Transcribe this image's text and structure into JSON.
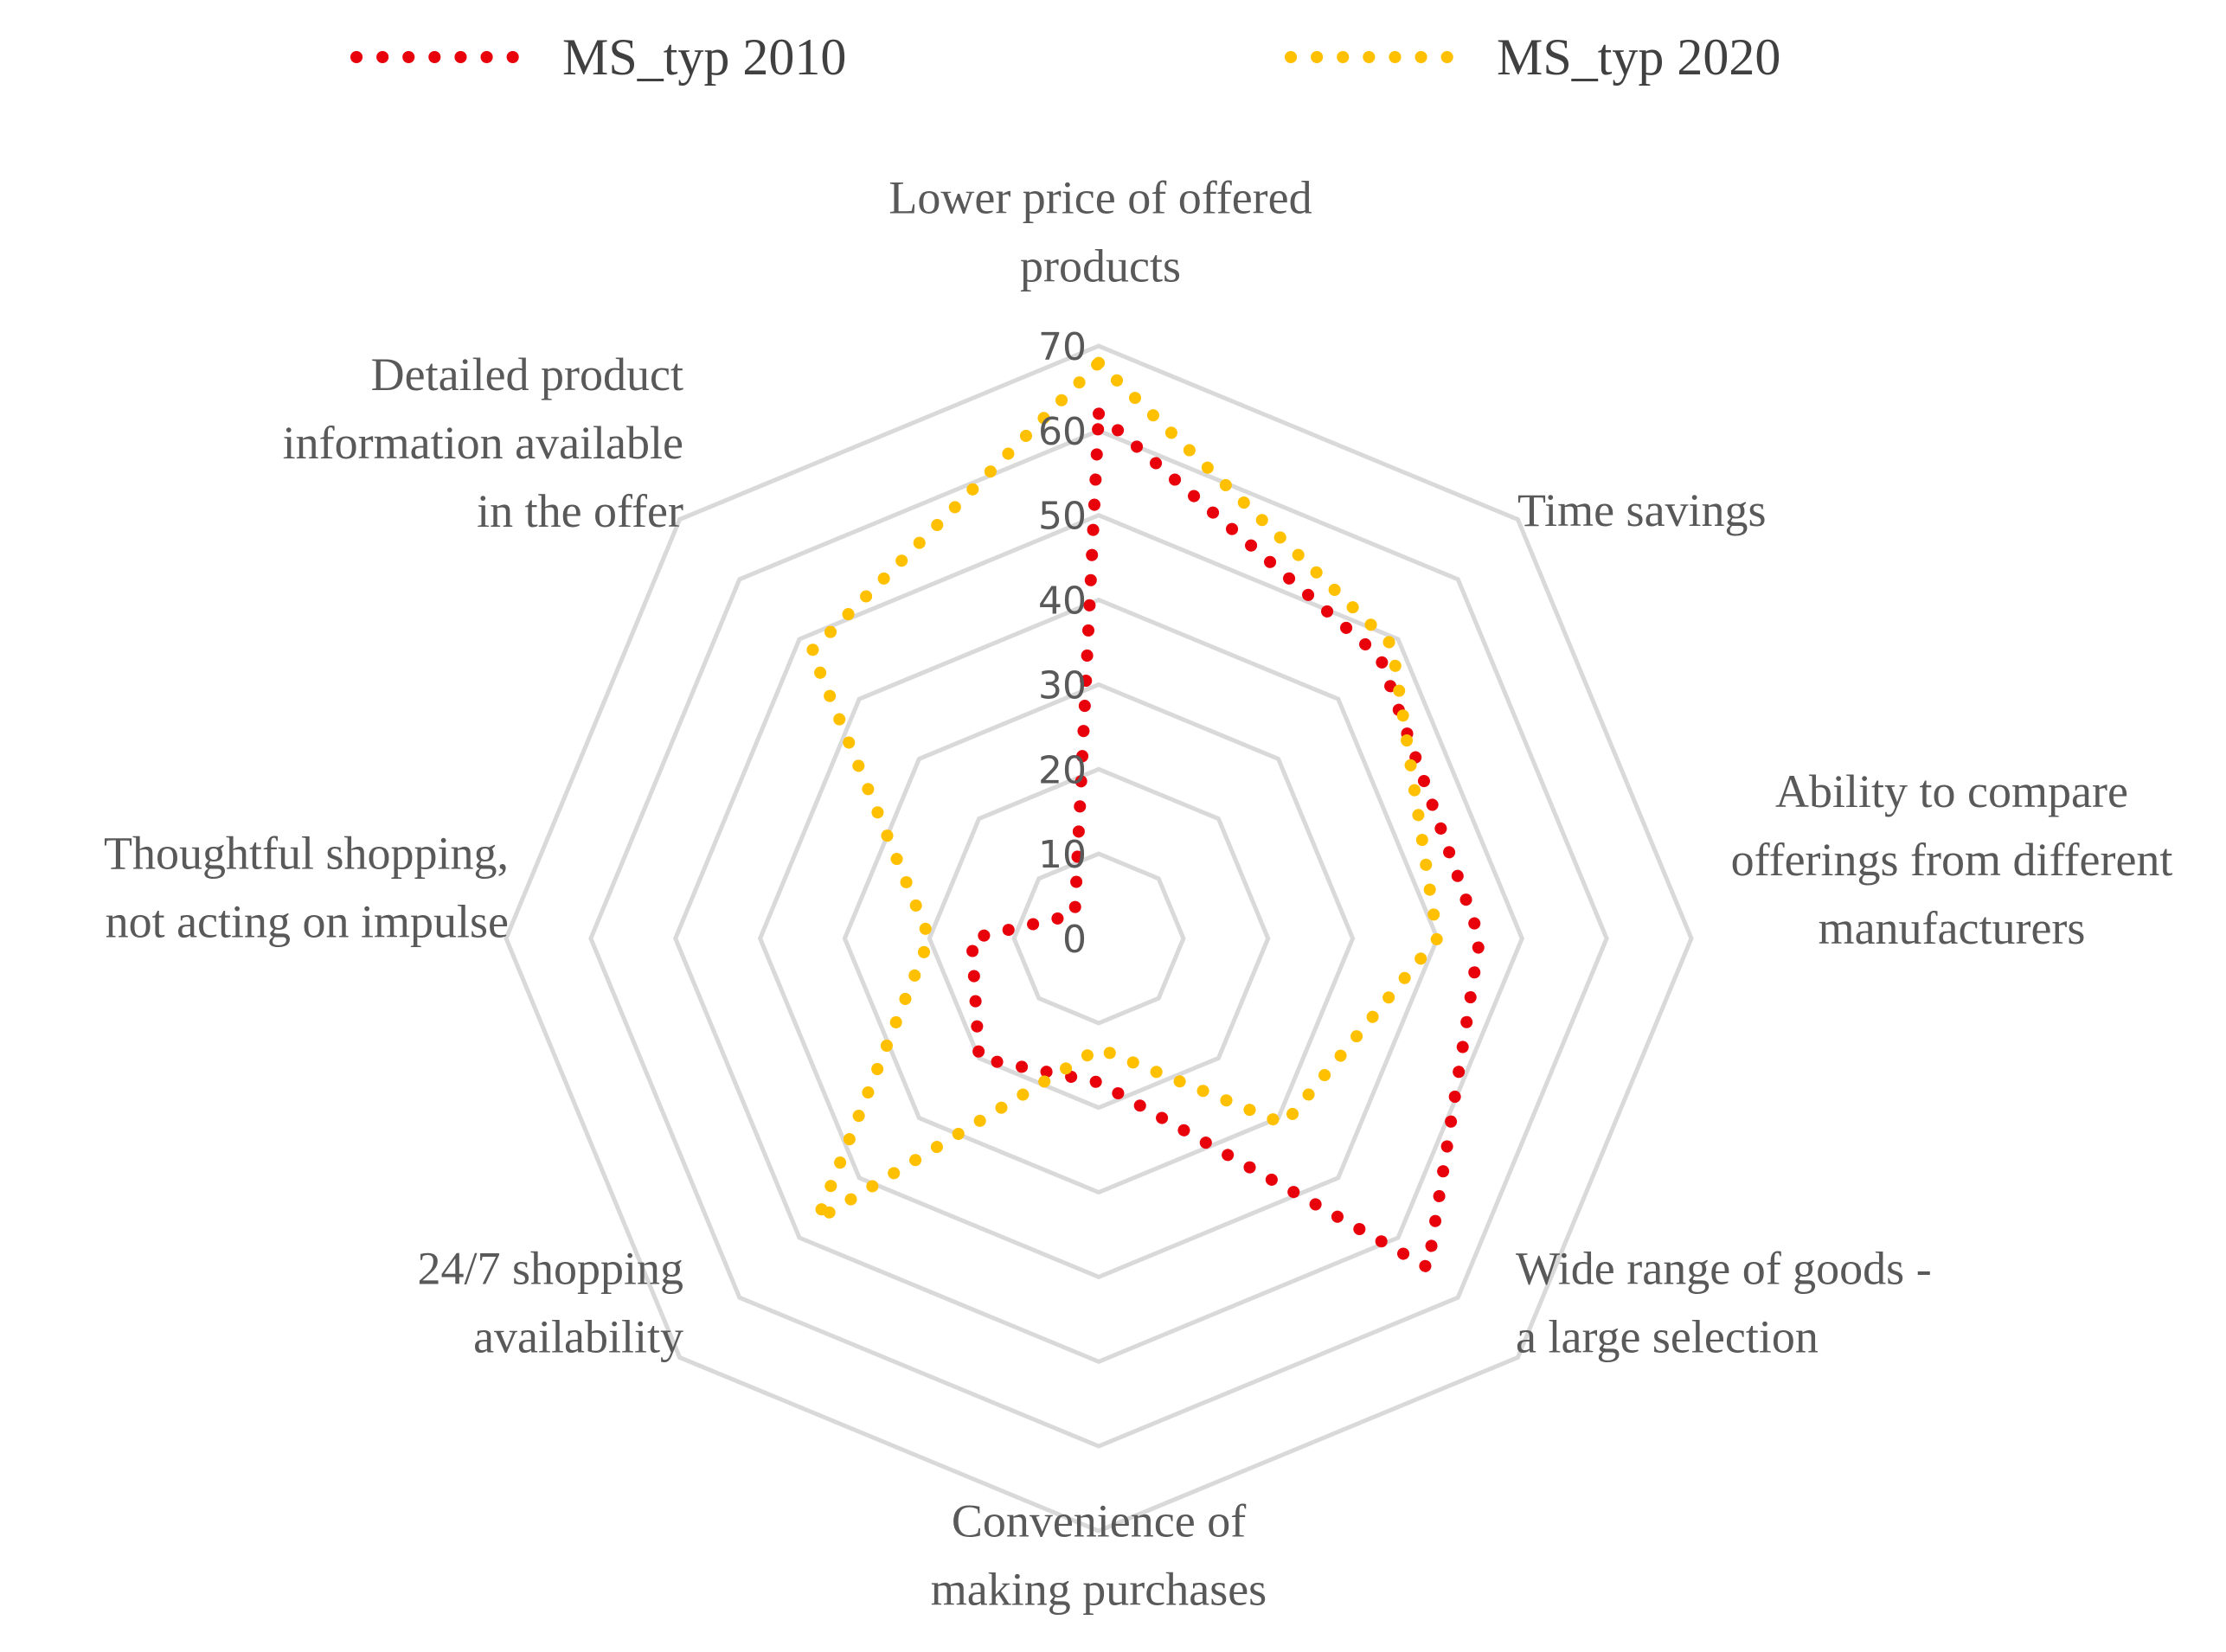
{
  "chart_data": {
    "type": "radar",
    "title": "",
    "categories": [
      "Lower price of offered products",
      "Time savings",
      "Ability to compare offerings from different manufacturers",
      "Wide range of goods - a large selection",
      "Convenience of making purchases",
      "24/7 shopping availability",
      "Thoughtful shopping, not acting on impulse",
      "Detailed product information available in the offer"
    ],
    "category_lines": [
      [
        "Lower price of offered",
        "products"
      ],
      [
        "Time savings"
      ],
      [
        "Ability to compare",
        "offerings from different",
        "manufacturers"
      ],
      [
        "Wide range of goods -",
        "a large selection"
      ],
      [
        "Convenience of",
        "making purchases"
      ],
      [
        "24/7 shopping",
        "availability"
      ],
      [
        "Thoughtful shopping,",
        "not acting on impulse"
      ],
      [
        "Detailed product",
        "information available",
        "in the offer"
      ]
    ],
    "series": [
      {
        "name": "MS_typ 2010",
        "color": "#E8000B",
        "values": [
          62,
          47,
          45,
          55,
          17,
          20,
          15,
          4
        ]
      },
      {
        "name": "MS_typ 2020",
        "color": "#FFC000",
        "values": [
          68,
          49,
          40,
          31,
          13,
          47,
          20,
          48
        ]
      }
    ],
    "rlim": [
      0,
      70
    ],
    "ticks": [
      "0",
      "10",
      "20",
      "30",
      "40",
      "50",
      "60",
      "70"
    ],
    "legend_position": "top",
    "grid": true
  }
}
